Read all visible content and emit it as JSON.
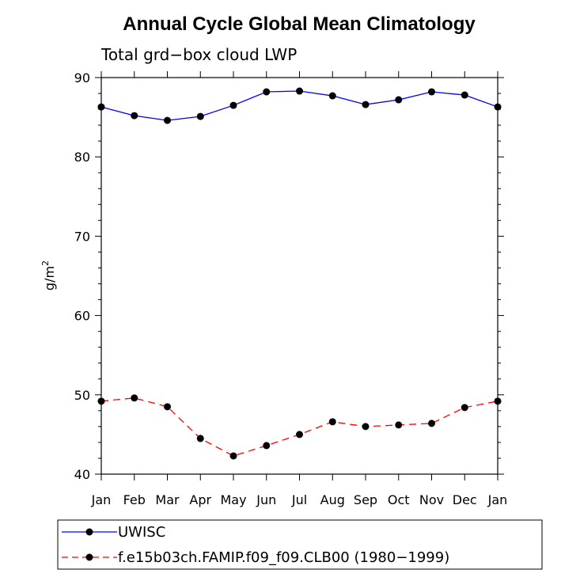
{
  "chart_data": {
    "type": "line",
    "title": "Annual Cycle Global Mean Climatology",
    "subtitle": "Total grd−box cloud LWP",
    "ylabel": "g/m",
    "ylabel_superscript": "2",
    "ylim": [
      40,
      90
    ],
    "yticks": [
      "40",
      "50",
      "60",
      "70",
      "80",
      "90"
    ],
    "categories": [
      "Jan",
      "Feb",
      "Mar",
      "Apr",
      "May",
      "Jun",
      "Jul",
      "Aug",
      "Sep",
      "Oct",
      "Nov",
      "Dec",
      "Jan"
    ],
    "grid": false,
    "legend_position": "bottom",
    "series": [
      {
        "name": "UWISC",
        "color": "#0000ff",
        "line_style": "solid",
        "marker": "filled-circle",
        "values": [
          86.3,
          85.2,
          84.6,
          85.1,
          86.5,
          88.2,
          88.3,
          87.7,
          86.6,
          87.2,
          88.2,
          87.8,
          86.3
        ]
      },
      {
        "name": "f.e15b03ch.FAMIP.f09_f09.CLB00 (1980−1999)",
        "color": "#ff0000",
        "line_style": "dashed",
        "marker": "filled-circle",
        "values": [
          49.2,
          49.6,
          48.5,
          44.5,
          42.3,
          43.6,
          45.0,
          46.6,
          46.0,
          46.2,
          46.4,
          48.4,
          49.2
        ]
      }
    ]
  }
}
